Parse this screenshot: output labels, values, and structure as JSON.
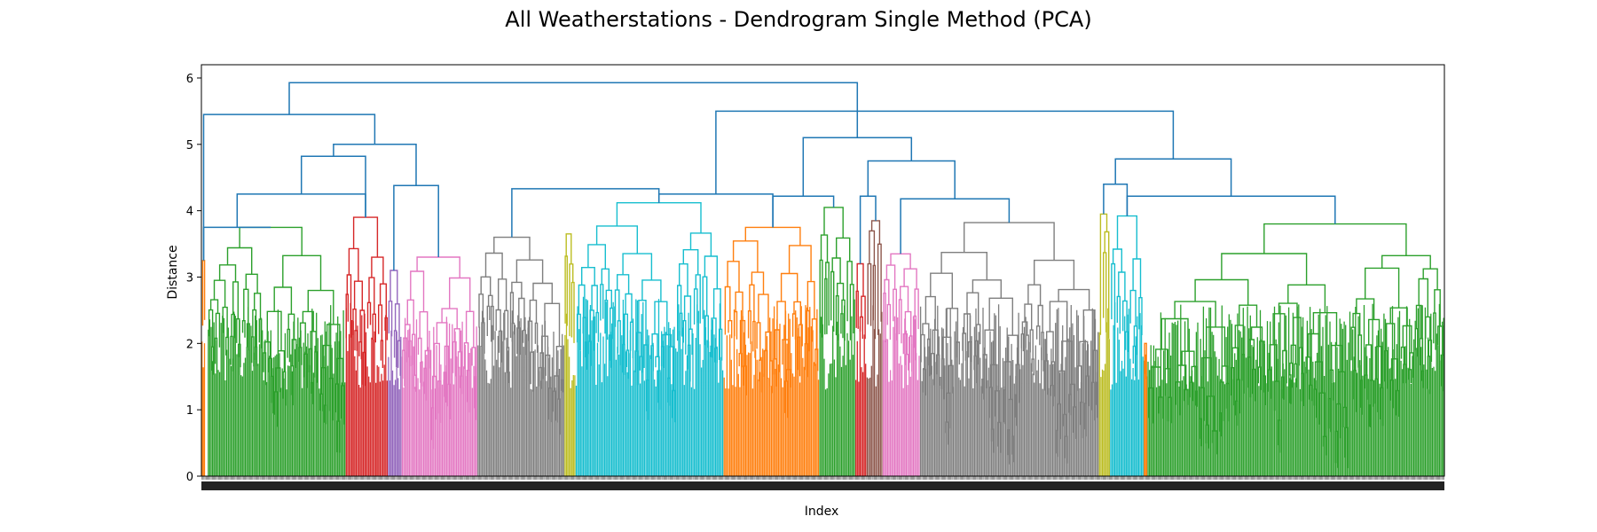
{
  "chart_data": {
    "type": "dendrogram",
    "title": "All Weatherstations - Dendrogram Single Method (PCA)",
    "xlabel": "Index",
    "ylabel": "Distance",
    "ylim": [
      0,
      6.2
    ],
    "yticks": [
      0,
      1,
      2,
      3,
      4,
      5,
      6
    ],
    "grid": false,
    "legend": "none",
    "link_color_above_threshold": "#1f77b4",
    "clusters": [
      {
        "color": "#ff7f0e",
        "start": 0.0,
        "end": 0.003,
        "height": 3.25
      },
      {
        "color": "#2ca02c",
        "start": 0.005,
        "end": 0.116,
        "height": 3.75
      },
      {
        "color": "#d62728",
        "start": 0.116,
        "end": 0.15,
        "height": 3.9
      },
      {
        "color": "#9467bd",
        "start": 0.15,
        "end": 0.161,
        "height": 3.1
      },
      {
        "color": "#e377c2",
        "start": 0.161,
        "end": 0.222,
        "height": 3.3
      },
      {
        "color": "#7f7f7f",
        "start": 0.222,
        "end": 0.292,
        "height": 3.6
      },
      {
        "color": "#bcbd22",
        "start": 0.292,
        "end": 0.301,
        "height": 3.65
      },
      {
        "color": "#17becf",
        "start": 0.301,
        "end": 0.42,
        "height": 4.12
      },
      {
        "color": "#ff7f0e",
        "start": 0.42,
        "end": 0.497,
        "height": 3.75
      },
      {
        "color": "#2ca02c",
        "start": 0.497,
        "end": 0.526,
        "height": 4.05
      },
      {
        "color": "#d62728",
        "start": 0.526,
        "end": 0.535,
        "height": 3.2
      },
      {
        "color": "#8c564b",
        "start": 0.535,
        "end": 0.548,
        "height": 3.85
      },
      {
        "color": "#e377c2",
        "start": 0.548,
        "end": 0.578,
        "height": 3.35
      },
      {
        "color": "#7f7f7f",
        "start": 0.578,
        "end": 0.722,
        "height": 3.82
      },
      {
        "color": "#bcbd22",
        "start": 0.722,
        "end": 0.731,
        "height": 3.95
      },
      {
        "color": "#17becf",
        "start": 0.731,
        "end": 0.758,
        "height": 3.92
      },
      {
        "color": "#ff7f0e",
        "start": 0.758,
        "end": 0.761,
        "height": 2.0
      },
      {
        "color": "#2ca02c",
        "start": 0.761,
        "end": 1.0,
        "height": 3.8
      }
    ],
    "above_threshold_links": [
      {
        "left": 0,
        "right": 1,
        "height": 3.75
      },
      {
        "left": "c1",
        "right": 2,
        "height": 4.25
      },
      {
        "left": 3,
        "right": 4,
        "height": 4.38
      },
      {
        "left": 2,
        "right": "c2",
        "height": 4.82
      },
      {
        "left": "c3",
        "right": "c4",
        "height": 5.0
      },
      {
        "left": 0,
        "right": "c5",
        "height": 5.45
      },
      {
        "left": 5,
        "right": 7,
        "height": 4.33
      },
      {
        "left": 7,
        "right": 8,
        "height": 4.25
      },
      {
        "left": 8,
        "right": 9,
        "height": 4.22
      },
      {
        "left": 10,
        "right": 11,
        "height": 4.22
      },
      {
        "left": 12,
        "right": 13,
        "height": 4.18
      },
      {
        "left": 14,
        "right": 15,
        "height": 4.4
      },
      {
        "left": 15,
        "right": 17,
        "height": 4.22
      },
      {
        "left": "c10",
        "right": "c11",
        "height": 4.75
      },
      {
        "left": "c12",
        "right": "c13",
        "height": 4.78
      },
      {
        "left": "c9",
        "right": "c14",
        "height": 5.1
      },
      {
        "left": "c8",
        "right": "c15",
        "height": 5.5
      },
      {
        "left": "c6",
        "right": "c16",
        "height": 5.93
      }
    ],
    "x_tick_labels_count": 1200
  }
}
